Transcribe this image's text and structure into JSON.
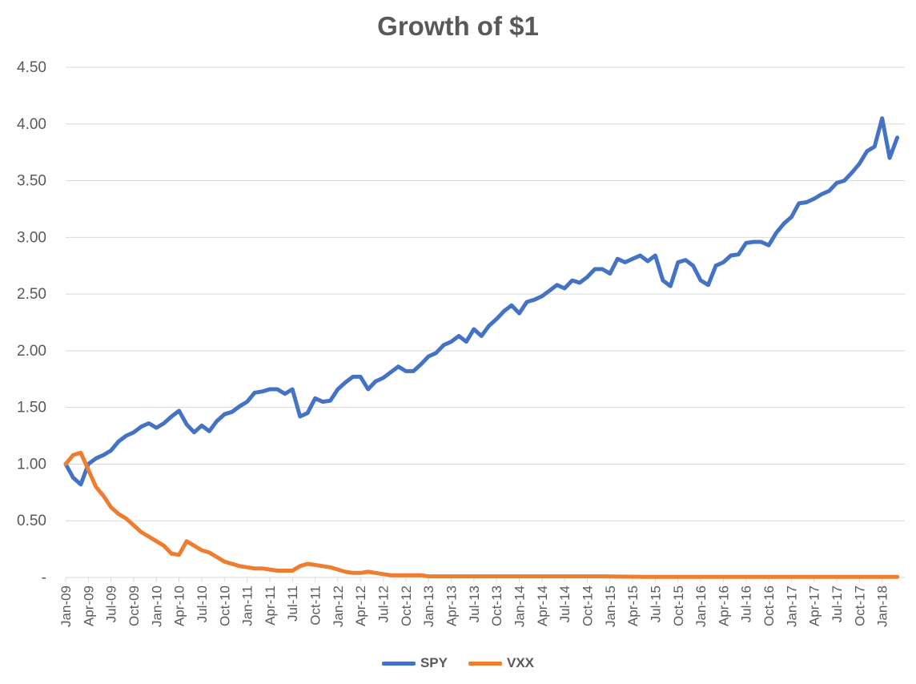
{
  "chart_data": {
    "type": "line",
    "title": "Growth of $1",
    "xlabel": "",
    "ylabel": "",
    "ylim": [
      0,
      4.5
    ],
    "y_ticks": [
      "-",
      "0.50",
      "1.00",
      "1.50",
      "2.00",
      "2.50",
      "3.00",
      "3.50",
      "4.00",
      "4.50"
    ],
    "x_ticks": [
      "Jan-09",
      "Apr-09",
      "Jul-09",
      "Oct-09",
      "Jan-10",
      "Apr-10",
      "Jul-10",
      "Oct-10",
      "Jan-11",
      "Apr-11",
      "Jul-11",
      "Oct-11",
      "Jan-12",
      "Apr-12",
      "Jul-12",
      "Oct-12",
      "Jan-13",
      "Apr-13",
      "Jul-13",
      "Oct-13",
      "Jan-14",
      "Apr-14",
      "Jul-14",
      "Oct-14",
      "Jan-15",
      "Apr-15",
      "Jul-15",
      "Oct-15",
      "Jan-16",
      "Apr-16",
      "Jul-16",
      "Oct-16",
      "Jan-17",
      "Apr-17",
      "Jul-17",
      "Oct-17",
      "Jan-18"
    ],
    "grid": true,
    "legend_position": "bottom",
    "series": [
      {
        "name": "SPY",
        "color": "#4472c4",
        "points": [
          [
            "2009-01",
            1.0
          ],
          [
            "2009-02",
            0.88
          ],
          [
            "2009-03",
            0.82
          ],
          [
            "2009-04",
            1.0
          ],
          [
            "2009-05",
            1.05
          ],
          [
            "2009-06",
            1.08
          ],
          [
            "2009-07",
            1.12
          ],
          [
            "2009-08",
            1.2
          ],
          [
            "2009-09",
            1.25
          ],
          [
            "2009-10",
            1.28
          ],
          [
            "2009-11",
            1.33
          ],
          [
            "2009-12",
            1.36
          ],
          [
            "2010-01",
            1.32
          ],
          [
            "2010-02",
            1.36
          ],
          [
            "2010-03",
            1.42
          ],
          [
            "2010-04",
            1.47
          ],
          [
            "2010-05",
            1.35
          ],
          [
            "2010-06",
            1.28
          ],
          [
            "2010-07",
            1.34
          ],
          [
            "2010-08",
            1.29
          ],
          [
            "2010-09",
            1.38
          ],
          [
            "2010-10",
            1.44
          ],
          [
            "2010-11",
            1.46
          ],
          [
            "2010-12",
            1.51
          ],
          [
            "2011-01",
            1.55
          ],
          [
            "2011-02",
            1.63
          ],
          [
            "2011-03",
            1.64
          ],
          [
            "2011-04",
            1.66
          ],
          [
            "2011-05",
            1.66
          ],
          [
            "2011-06",
            1.62
          ],
          [
            "2011-07",
            1.66
          ],
          [
            "2011-08",
            1.42
          ],
          [
            "2011-09",
            1.45
          ],
          [
            "2011-10",
            1.58
          ],
          [
            "2011-11",
            1.55
          ],
          [
            "2011-12",
            1.56
          ],
          [
            "2012-01",
            1.66
          ],
          [
            "2012-02",
            1.72
          ],
          [
            "2012-03",
            1.77
          ],
          [
            "2012-04",
            1.77
          ],
          [
            "2012-05",
            1.66
          ],
          [
            "2012-06",
            1.73
          ],
          [
            "2012-07",
            1.76
          ],
          [
            "2012-08",
            1.81
          ],
          [
            "2012-09",
            1.86
          ],
          [
            "2012-10",
            1.82
          ],
          [
            "2012-11",
            1.82
          ],
          [
            "2012-12",
            1.88
          ],
          [
            "2013-01",
            1.95
          ],
          [
            "2013-02",
            1.98
          ],
          [
            "2013-03",
            2.05
          ],
          [
            "2013-04",
            2.08
          ],
          [
            "2013-05",
            2.13
          ],
          [
            "2013-06",
            2.08
          ],
          [
            "2013-07",
            2.19
          ],
          [
            "2013-08",
            2.13
          ],
          [
            "2013-09",
            2.22
          ],
          [
            "2013-10",
            2.28
          ],
          [
            "2013-11",
            2.35
          ],
          [
            "2013-12",
            2.4
          ],
          [
            "2014-01",
            2.33
          ],
          [
            "2014-02",
            2.43
          ],
          [
            "2014-03",
            2.45
          ],
          [
            "2014-04",
            2.48
          ],
          [
            "2014-05",
            2.53
          ],
          [
            "2014-06",
            2.58
          ],
          [
            "2014-07",
            2.55
          ],
          [
            "2014-08",
            2.62
          ],
          [
            "2014-09",
            2.6
          ],
          [
            "2014-10",
            2.65
          ],
          [
            "2014-11",
            2.72
          ],
          [
            "2014-12",
            2.72
          ],
          [
            "2015-01",
            2.68
          ],
          [
            "2015-02",
            2.81
          ],
          [
            "2015-03",
            2.78
          ],
          [
            "2015-04",
            2.81
          ],
          [
            "2015-05",
            2.84
          ],
          [
            "2015-06",
            2.79
          ],
          [
            "2015-07",
            2.84
          ],
          [
            "2015-08",
            2.62
          ],
          [
            "2015-09",
            2.57
          ],
          [
            "2015-10",
            2.78
          ],
          [
            "2015-11",
            2.8
          ],
          [
            "2015-12",
            2.75
          ],
          [
            "2016-01",
            2.62
          ],
          [
            "2016-02",
            2.58
          ],
          [
            "2016-03",
            2.75
          ],
          [
            "2016-04",
            2.78
          ],
          [
            "2016-05",
            2.84
          ],
          [
            "2016-06",
            2.85
          ],
          [
            "2016-07",
            2.95
          ],
          [
            "2016-08",
            2.96
          ],
          [
            "2016-09",
            2.96
          ],
          [
            "2016-10",
            2.93
          ],
          [
            "2016-11",
            3.04
          ],
          [
            "2016-12",
            3.12
          ],
          [
            "2017-01",
            3.18
          ],
          [
            "2017-02",
            3.3
          ],
          [
            "2017-03",
            3.31
          ],
          [
            "2017-04",
            3.34
          ],
          [
            "2017-05",
            3.38
          ],
          [
            "2017-06",
            3.41
          ],
          [
            "2017-07",
            3.48
          ],
          [
            "2017-08",
            3.5
          ],
          [
            "2017-09",
            3.57
          ],
          [
            "2017-10",
            3.65
          ],
          [
            "2017-11",
            3.76
          ],
          [
            "2017-12",
            3.8
          ],
          [
            "2018-01",
            4.05
          ],
          [
            "2018-02",
            3.7
          ],
          [
            "2018-03",
            3.88
          ]
        ]
      },
      {
        "name": "VXX",
        "color": "#ed7d31",
        "points": [
          [
            "2009-01",
            1.0
          ],
          [
            "2009-02",
            1.08
          ],
          [
            "2009-03",
            1.1
          ],
          [
            "2009-04",
            0.95
          ],
          [
            "2009-05",
            0.8
          ],
          [
            "2009-06",
            0.72
          ],
          [
            "2009-07",
            0.62
          ],
          [
            "2009-08",
            0.56
          ],
          [
            "2009-09",
            0.52
          ],
          [
            "2009-10",
            0.46
          ],
          [
            "2009-11",
            0.4
          ],
          [
            "2009-12",
            0.36
          ],
          [
            "2010-01",
            0.32
          ],
          [
            "2010-02",
            0.28
          ],
          [
            "2010-03",
            0.21
          ],
          [
            "2010-04",
            0.2
          ],
          [
            "2010-05",
            0.32
          ],
          [
            "2010-06",
            0.28
          ],
          [
            "2010-07",
            0.24
          ],
          [
            "2010-08",
            0.22
          ],
          [
            "2010-09",
            0.18
          ],
          [
            "2010-10",
            0.14
          ],
          [
            "2010-11",
            0.12
          ],
          [
            "2010-12",
            0.1
          ],
          [
            "2011-01",
            0.09
          ],
          [
            "2011-02",
            0.08
          ],
          [
            "2011-03",
            0.08
          ],
          [
            "2011-04",
            0.07
          ],
          [
            "2011-05",
            0.06
          ],
          [
            "2011-06",
            0.06
          ],
          [
            "2011-07",
            0.06
          ],
          [
            "2011-08",
            0.1
          ],
          [
            "2011-09",
            0.12
          ],
          [
            "2011-10",
            0.11
          ],
          [
            "2011-11",
            0.1
          ],
          [
            "2011-12",
            0.09
          ],
          [
            "2012-01",
            0.07
          ],
          [
            "2012-02",
            0.05
          ],
          [
            "2012-03",
            0.04
          ],
          [
            "2012-04",
            0.04
          ],
          [
            "2012-05",
            0.05
          ],
          [
            "2012-06",
            0.04
          ],
          [
            "2012-07",
            0.03
          ],
          [
            "2012-08",
            0.02
          ],
          [
            "2012-09",
            0.02
          ],
          [
            "2012-10",
            0.02
          ],
          [
            "2012-11",
            0.02
          ],
          [
            "2012-12",
            0.02
          ],
          [
            "2013-01",
            0.01
          ],
          [
            "2013-06",
            0.01
          ],
          [
            "2013-12",
            0.01
          ],
          [
            "2014-06",
            0.01
          ],
          [
            "2014-12",
            0.01
          ],
          [
            "2015-06",
            0.005
          ],
          [
            "2015-12",
            0.005
          ],
          [
            "2016-06",
            0.005
          ],
          [
            "2016-12",
            0.005
          ],
          [
            "2017-06",
            0.005
          ],
          [
            "2017-12",
            0.005
          ],
          [
            "2018-03",
            0.005
          ]
        ]
      }
    ]
  }
}
